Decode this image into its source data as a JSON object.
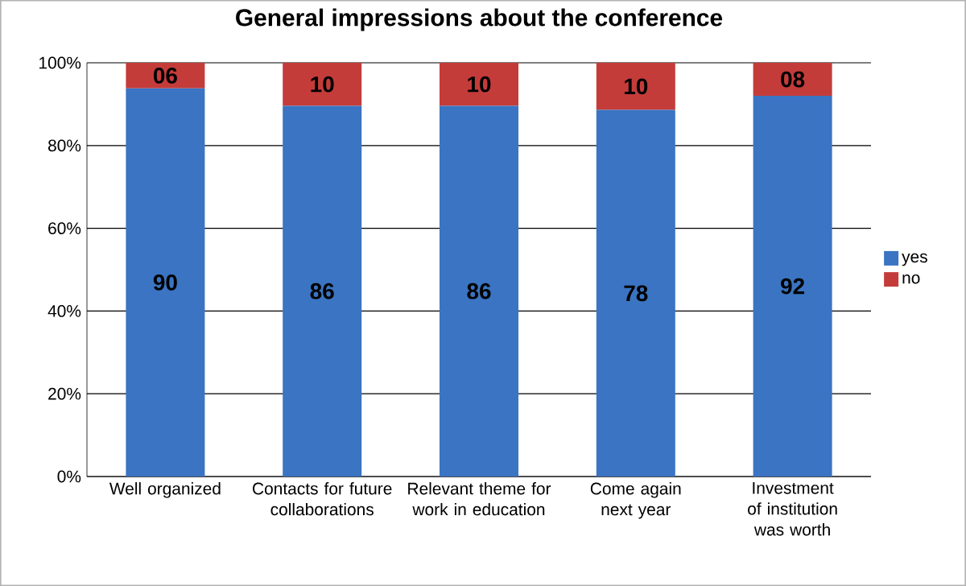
{
  "chart_data": {
    "type": "bar",
    "title": "General impressions about the conference",
    "categories": [
      "Well organized",
      "Contacts for future collaborations",
      "Relevant theme for work in education",
      "Come again next year",
      "Investment of institution was worth"
    ],
    "stacked": true,
    "series": [
      {
        "name": "yes",
        "color": "#3a74c2",
        "values": [
          93.8,
          89.6,
          89.6,
          88.6,
          92
        ]
      },
      {
        "name": "no",
        "color": "#c43c3a",
        "values": [
          6.2,
          10.4,
          10.4,
          11.4,
          8
        ]
      }
    ],
    "annotations": [
      "90",
      "86",
      "86",
      "78",
      "92",
      "06",
      "10",
      "10",
      "10",
      "08"
    ],
    "ylim": [
      0,
      100
    ],
    "yticks": [
      {
        "value": 0,
        "label": "0%"
      },
      {
        "value": 20,
        "label": "20%"
      },
      {
        "value": 40,
        "label": "40%"
      },
      {
        "value": 60,
        "label": "60%"
      },
      {
        "value": 80,
        "label": "80%"
      },
      {
        "value": 100,
        "label": "100%"
      }
    ],
    "grid": "y",
    "legend": "right"
  }
}
